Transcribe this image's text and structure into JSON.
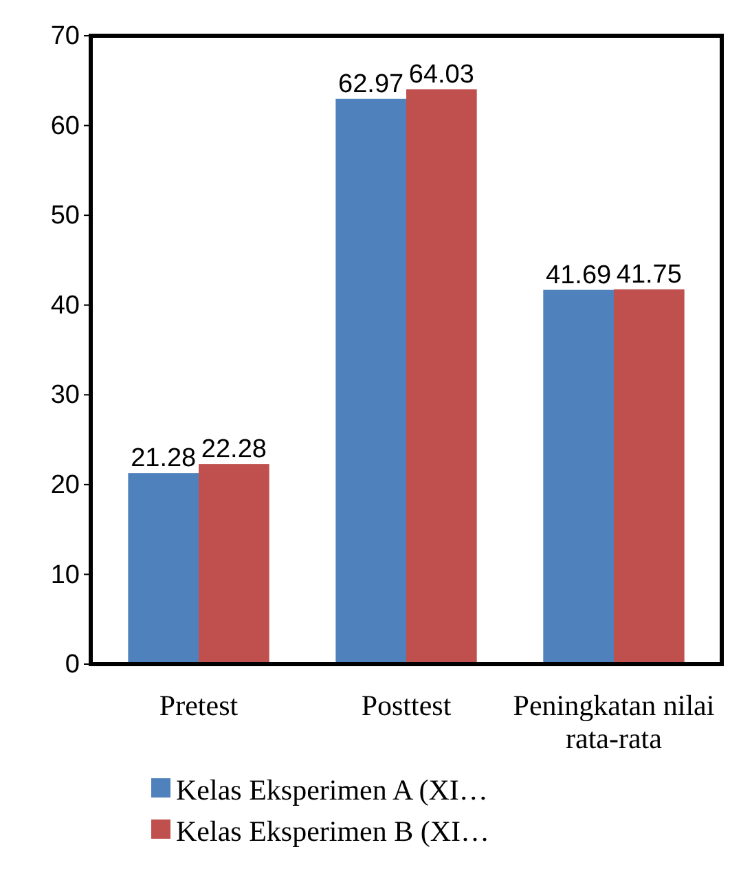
{
  "chart_data": {
    "type": "bar",
    "categories": [
      "Pretest",
      "Posttest",
      "Peningkatan nilai rata-rata"
    ],
    "series": [
      {
        "name": "Kelas Eksperimen A (XI…",
        "color": "#4f81bd",
        "values": [
          21.28,
          62.97,
          41.69
        ]
      },
      {
        "name": "Kelas Eksperimen B (XI…",
        "color": "#c0504d",
        "values": [
          22.28,
          64.03,
          41.75
        ]
      }
    ],
    "ylim": [
      0,
      70
    ],
    "yticks": [
      0,
      10,
      20,
      30,
      40,
      50,
      60,
      70
    ],
    "data_labels": true,
    "legend": "bottom"
  }
}
